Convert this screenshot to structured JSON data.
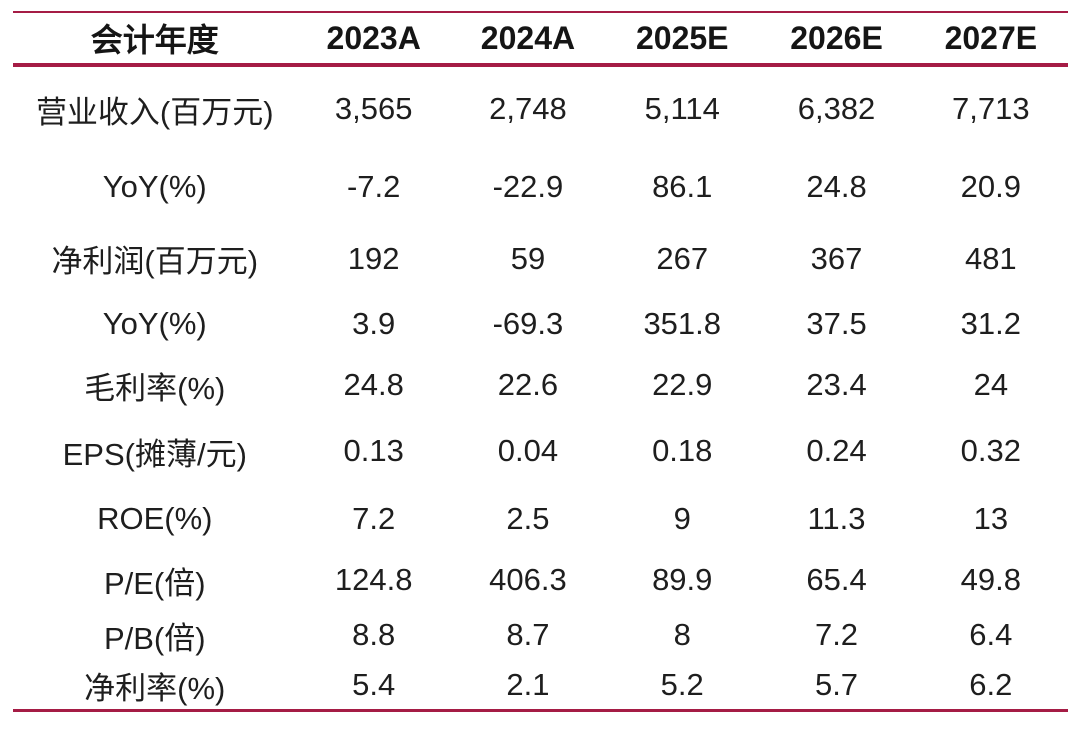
{
  "table": {
    "header": {
      "label": "会计年度",
      "columns": [
        "2023A",
        "2024A",
        "2025E",
        "2026E",
        "2027E"
      ]
    },
    "rows": [
      {
        "label": "营业收入(百万元)",
        "values": [
          "3,565",
          "2,748",
          "5,114",
          "6,382",
          "7,713"
        ]
      },
      {
        "label": "YoY(%)",
        "values": [
          "-7.2",
          "-22.9",
          "86.1",
          "24.8",
          "20.9"
        ]
      },
      {
        "label": "净利润(百万元)",
        "values": [
          "192",
          "59",
          "267",
          "367",
          "481"
        ]
      },
      {
        "label": "YoY(%)",
        "values": [
          "3.9",
          "-69.3",
          "351.8",
          "37.5",
          "31.2"
        ]
      },
      {
        "label": "毛利率(%)",
        "values": [
          "24.8",
          "22.6",
          "22.9",
          "23.4",
          "24"
        ]
      },
      {
        "label": "EPS(摊薄/元)",
        "values": [
          "0.13",
          "0.04",
          "0.18",
          "0.24",
          "0.32"
        ]
      },
      {
        "label": "ROE(%)",
        "values": [
          "7.2",
          "2.5",
          "9",
          "11.3",
          "13"
        ]
      },
      {
        "label": "P/E(倍)",
        "values": [
          "124.8",
          "406.3",
          "89.9",
          "65.4",
          "49.8"
        ]
      },
      {
        "label": "P/B(倍)",
        "values": [
          "8.8",
          "8.7",
          "8",
          "7.2",
          "6.4"
        ]
      },
      {
        "label": "净利率(%)",
        "values": [
          "5.4",
          "2.1",
          "5.2",
          "5.7",
          "6.2"
        ]
      }
    ]
  },
  "colors": {
    "rule": "#A51C45",
    "header_text": "#151515",
    "body_text": "#1e1e1e",
    "background": "#ffffff"
  },
  "chart_data": {
    "type": "table",
    "title": "",
    "columns": [
      "会计年度",
      "2023A",
      "2024A",
      "2025E",
      "2026E",
      "2027E"
    ],
    "rows": [
      [
        "营业收入(百万元)",
        3565,
        2748,
        5114,
        6382,
        7713
      ],
      [
        "YoY(%)",
        -7.2,
        -22.9,
        86.1,
        24.8,
        20.9
      ],
      [
        "净利润(百万元)",
        192,
        59,
        267,
        367,
        481
      ],
      [
        "YoY(%)",
        3.9,
        -69.3,
        351.8,
        37.5,
        31.2
      ],
      [
        "毛利率(%)",
        24.8,
        22.6,
        22.9,
        23.4,
        24
      ],
      [
        "EPS(摊薄/元)",
        0.13,
        0.04,
        0.18,
        0.24,
        0.32
      ],
      [
        "ROE(%)",
        7.2,
        2.5,
        9,
        11.3,
        13
      ],
      [
        "P/E(倍)",
        124.8,
        406.3,
        89.9,
        65.4,
        49.8
      ],
      [
        "P/B(倍)",
        8.8,
        8.7,
        8,
        7.2,
        6.4
      ],
      [
        "净利率(%)",
        5.4,
        2.1,
        5.2,
        5.7,
        6.2
      ]
    ]
  }
}
